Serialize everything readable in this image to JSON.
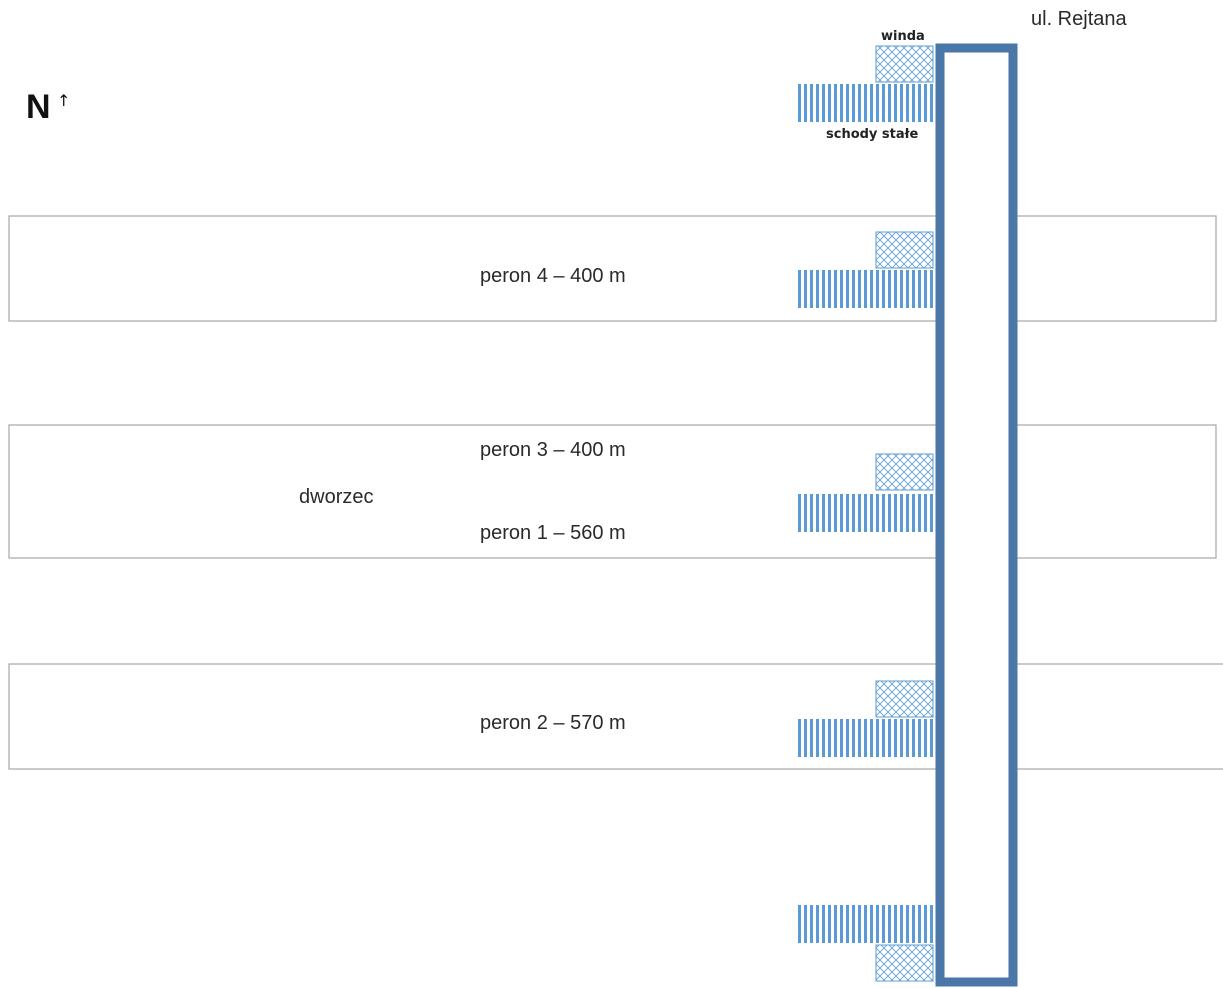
{
  "compass": {
    "letter": "N",
    "arrow": "↑"
  },
  "street_label": "ul. Rejtana",
  "legend": {
    "elevator_label": "winda",
    "stairs_label": "schody stałe"
  },
  "station_label": "dworzec",
  "platforms": [
    {
      "id": "peron-4",
      "label": "peron 4 – 400 m"
    },
    {
      "id": "peron-3",
      "label": "peron 3 – 400 m"
    },
    {
      "id": "peron-1",
      "label": "peron 1 – 560 m"
    },
    {
      "id": "peron-2",
      "label": "peron 2 – 570 m"
    }
  ],
  "colors": {
    "tunnel": "#4a76a8",
    "stairs": "#5b9bd5",
    "platform_border": "#a6a6a6",
    "elevator_hatch": "#5b9bd5"
  }
}
